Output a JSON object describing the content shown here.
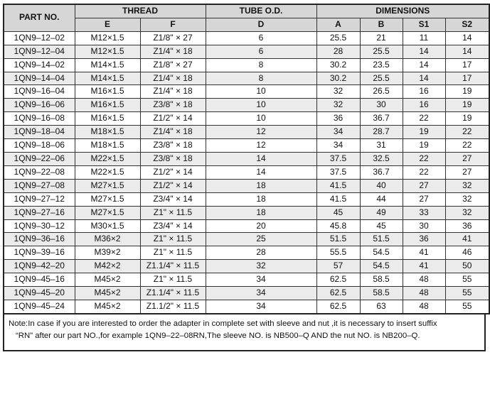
{
  "header": {
    "part_no": "PART NO.",
    "thread": "THREAD",
    "tube_od": "TUBE O.D.",
    "dimensions": "DIMENSIONS",
    "sub": [
      "E",
      "F",
      "D",
      "A",
      "B",
      "S1",
      "S2"
    ]
  },
  "rows": [
    [
      "1QN9–12–02",
      "M12×1.5",
      "Z1/8\" × 27",
      "6",
      "25.5",
      "21",
      "11",
      "14"
    ],
    [
      "1QN9–12–04",
      "M12×1.5",
      "Z1/4\" × 18",
      "6",
      "28",
      "25.5",
      "14",
      "14"
    ],
    [
      "1QN9–14–02",
      "M14×1.5",
      "Z1/8\" × 27",
      "8",
      "30.2",
      "23.5",
      "14",
      "17"
    ],
    [
      "1QN9–14–04",
      "M14×1.5",
      "Z1/4\" × 18",
      "8",
      "30.2",
      "25.5",
      "14",
      "17"
    ],
    [
      "1QN9–16–04",
      "M16×1.5",
      "Z1/4\" × 18",
      "10",
      "32",
      "26.5",
      "16",
      "19"
    ],
    [
      "1QN9–16–06",
      "M16×1.5",
      "Z3/8\" × 18",
      "10",
      "32",
      "30",
      "16",
      "19"
    ],
    [
      "1QN9–16–08",
      "M16×1.5",
      "Z1/2\" × 14",
      "10",
      "36",
      "36.7",
      "22",
      "19"
    ],
    [
      "1QN9–18–04",
      "M18×1.5",
      "Z1/4\" × 18",
      "12",
      "34",
      "28.7",
      "19",
      "22"
    ],
    [
      "1QN9–18–06",
      "M18×1.5",
      "Z3/8\" × 18",
      "12",
      "34",
      "31",
      "19",
      "22"
    ],
    [
      "1QN9–22–06",
      "M22×1.5",
      "Z3/8\" × 18",
      "14",
      "37.5",
      "32.5",
      "22",
      "27"
    ],
    [
      "1QN9–22–08",
      "M22×1.5",
      "Z1/2\" × 14",
      "14",
      "37.5",
      "36.7",
      "22",
      "27"
    ],
    [
      "1QN9–27–08",
      "M27×1.5",
      "Z1/2\" × 14",
      "18",
      "41.5",
      "40",
      "27",
      "32"
    ],
    [
      "1QN9–27–12",
      "M27×1.5",
      "Z3/4\" × 14",
      "18",
      "41.5",
      "44",
      "27",
      "32"
    ],
    [
      "1QN9–27–16",
      "M27×1.5",
      "Z1\" × 11.5",
      "18",
      "45",
      "49",
      "33",
      "32"
    ],
    [
      "1QN9–30–12",
      "M30×1.5",
      "Z3/4\" × 14",
      "20",
      "45.8",
      "45",
      "30",
      "36"
    ],
    [
      "1QN9–36–16",
      "M36×2",
      "Z1\" × 11.5",
      "25",
      "51.5",
      "51.5",
      "36",
      "41"
    ],
    [
      "1QN9–39–16",
      "M39×2",
      "Z1\" × 11.5",
      "28",
      "55.5",
      "54.5",
      "41",
      "46"
    ],
    [
      "1QN9–42–20",
      "M42×2",
      "Z1.1/4\" × 11.5",
      "32",
      "57",
      "54.5",
      "41",
      "50"
    ],
    [
      "1QN9–45–16",
      "M45×2",
      "Z1\" × 11.5",
      "34",
      "62.5",
      "58.5",
      "48",
      "55"
    ],
    [
      "1QN9–45–20",
      "M45×2",
      "Z1.1/4\" × 11.5",
      "34",
      "62.5",
      "58.5",
      "48",
      "55"
    ],
    [
      "1QN9–45–24",
      "M45×2",
      "Z1.1/2\" × 11.5",
      "34",
      "62.5",
      "63",
      "48",
      "55"
    ]
  ],
  "note": {
    "line1": "Note:In case if you are interested to order the adapter in complete set with sleeve and nut ,it is necessary to insert suffix",
    "line2": "“RN”  after our part NO.,for example 1QN9–22–08RN,The sleeve NO. is NB500–Q AND the nut NO. is NB200–Q."
  }
}
